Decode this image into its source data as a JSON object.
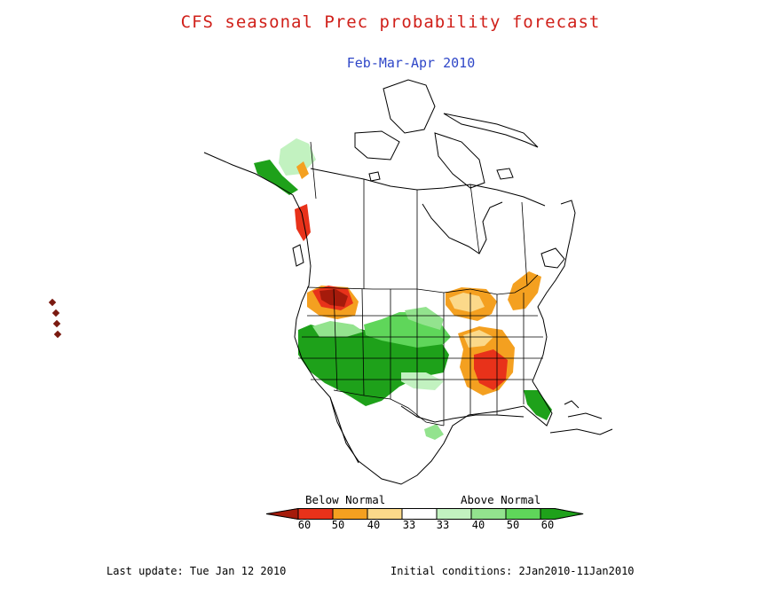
{
  "title": "CFS seasonal Prec probability forecast",
  "subtitle": "Feb-Mar-Apr 2010",
  "legend": {
    "below_label": "Below Normal",
    "above_label": "Above Normal",
    "ticks": [
      "60",
      "50",
      "40",
      "33",
      "33",
      "40",
      "50",
      "60"
    ],
    "colors": {
      "below_60": "#a51b0b",
      "below_50": "#e8321a",
      "below_40": "#f4a020",
      "below_33": "#fbd98a",
      "neutral": "#ffffff",
      "above_33": "#c2f2c0",
      "above_40": "#93e38e",
      "above_50": "#5fd65a",
      "above_60": "#1ea11a"
    }
  },
  "footer": {
    "last_update": "Last update: Tue Jan 12 2010",
    "initial_conditions": "Initial conditions: 2Jan2010-11Jan2010"
  }
}
